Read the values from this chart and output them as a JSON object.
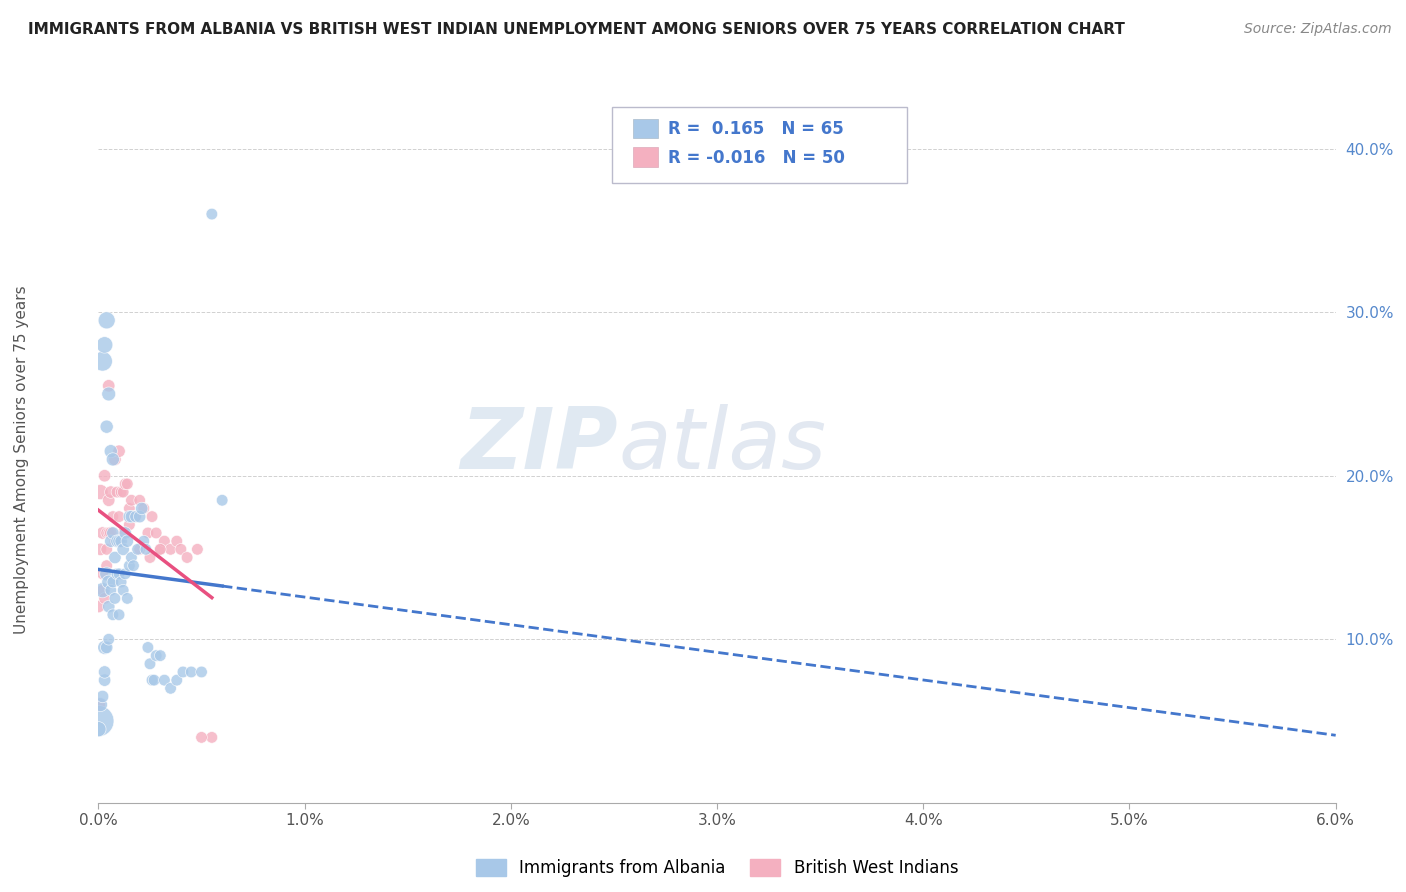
{
  "title": "IMMIGRANTS FROM ALBANIA VS BRITISH WEST INDIAN UNEMPLOYMENT AMONG SENIORS OVER 75 YEARS CORRELATION CHART",
  "source": "Source: ZipAtlas.com",
  "ylabel": "Unemployment Among Seniors over 75 years",
  "xlim": [
    0.0,
    0.06
  ],
  "ylim": [
    0.0,
    0.42
  ],
  "color_albania": "#a8c8e8",
  "color_bwi": "#f4b0c0",
  "line_color_albania": "#4477cc",
  "line_color_bwi": "#e85080",
  "R_albania": 0.165,
  "N_albania": 65,
  "R_bwi": -0.016,
  "N_bwi": 50,
  "legend_albania": "Immigrants from Albania",
  "legend_bwi": "British West Indians",
  "watermark_zip": "ZIP",
  "watermark_atlas": "atlas",
  "albania_x": [
    0.0,
    0.0002,
    0.0003,
    0.0003,
    0.0004,
    0.0004,
    0.0005,
    0.0005,
    0.0005,
    0.0006,
    0.0006,
    0.0007,
    0.0007,
    0.0007,
    0.0008,
    0.0008,
    0.0009,
    0.0009,
    0.001,
    0.001,
    0.001,
    0.0011,
    0.0011,
    0.0012,
    0.0012,
    0.0013,
    0.0013,
    0.0014,
    0.0014,
    0.0015,
    0.0015,
    0.0016,
    0.0016,
    0.0017,
    0.0018,
    0.0019,
    0.002,
    0.0021,
    0.0022,
    0.0023,
    0.0024,
    0.0025,
    0.0026,
    0.0027,
    0.0028,
    0.003,
    0.0032,
    0.0035,
    0.0038,
    0.0041,
    0.0045,
    0.005,
    0.0055,
    0.006,
    0.0,
    0.0001,
    0.0002,
    0.0003,
    0.0002,
    0.0004,
    0.0003,
    0.0005,
    0.0004,
    0.0006,
    0.0007
  ],
  "albania_y": [
    0.05,
    0.13,
    0.095,
    0.075,
    0.14,
    0.095,
    0.135,
    0.12,
    0.1,
    0.16,
    0.13,
    0.165,
    0.135,
    0.115,
    0.15,
    0.125,
    0.16,
    0.14,
    0.16,
    0.14,
    0.115,
    0.16,
    0.135,
    0.155,
    0.13,
    0.165,
    0.14,
    0.16,
    0.125,
    0.175,
    0.145,
    0.175,
    0.15,
    0.145,
    0.175,
    0.155,
    0.175,
    0.18,
    0.16,
    0.155,
    0.095,
    0.085,
    0.075,
    0.075,
    0.09,
    0.09,
    0.075,
    0.07,
    0.075,
    0.08,
    0.08,
    0.08,
    0.36,
    0.185,
    0.045,
    0.06,
    0.065,
    0.08,
    0.27,
    0.295,
    0.28,
    0.25,
    0.23,
    0.215,
    0.21
  ],
  "albania_sizes": [
    500,
    120,
    100,
    80,
    100,
    80,
    100,
    80,
    70,
    80,
    70,
    80,
    70,
    70,
    80,
    70,
    80,
    70,
    80,
    70,
    70,
    80,
    70,
    80,
    70,
    80,
    70,
    80,
    70,
    80,
    70,
    80,
    70,
    70,
    70,
    70,
    80,
    80,
    70,
    70,
    70,
    70,
    70,
    70,
    70,
    70,
    70,
    70,
    70,
    70,
    70,
    70,
    70,
    70,
    120,
    100,
    80,
    80,
    200,
    150,
    140,
    100,
    90,
    90,
    90
  ],
  "bwi_x": [
    0.0,
    0.0001,
    0.0002,
    0.0002,
    0.0003,
    0.0004,
    0.0004,
    0.0005,
    0.0005,
    0.0006,
    0.0007,
    0.0008,
    0.0009,
    0.001,
    0.0011,
    0.0012,
    0.0013,
    0.0014,
    0.0015,
    0.0016,
    0.0017,
    0.0018,
    0.002,
    0.0022,
    0.0024,
    0.0026,
    0.0028,
    0.003,
    0.0032,
    0.0035,
    0.0038,
    0.004,
    0.0043,
    0.0048,
    0.0055,
    0.0,
    0.0001,
    0.0002,
    0.0003,
    0.0004,
    0.0005,
    0.0006,
    0.0008,
    0.001,
    0.0012,
    0.0015,
    0.002,
    0.0025,
    0.003,
    0.005
  ],
  "bwi_y": [
    0.06,
    0.19,
    0.165,
    0.14,
    0.2,
    0.165,
    0.145,
    0.185,
    0.165,
    0.19,
    0.175,
    0.21,
    0.19,
    0.215,
    0.19,
    0.19,
    0.195,
    0.195,
    0.18,
    0.185,
    0.175,
    0.175,
    0.185,
    0.18,
    0.165,
    0.175,
    0.165,
    0.155,
    0.16,
    0.155,
    0.16,
    0.155,
    0.15,
    0.155,
    0.04,
    0.12,
    0.155,
    0.13,
    0.125,
    0.155,
    0.255,
    0.165,
    0.16,
    0.175,
    0.165,
    0.17,
    0.155,
    0.15,
    0.155,
    0.04
  ],
  "bwi_sizes": [
    100,
    120,
    80,
    70,
    80,
    70,
    70,
    80,
    70,
    80,
    70,
    80,
    70,
    80,
    70,
    70,
    70,
    70,
    70,
    70,
    70,
    70,
    70,
    70,
    70,
    70,
    70,
    70,
    70,
    70,
    70,
    70,
    70,
    70,
    70,
    80,
    80,
    70,
    70,
    70,
    80,
    80,
    70,
    70,
    70,
    70,
    70,
    70,
    70,
    70
  ]
}
